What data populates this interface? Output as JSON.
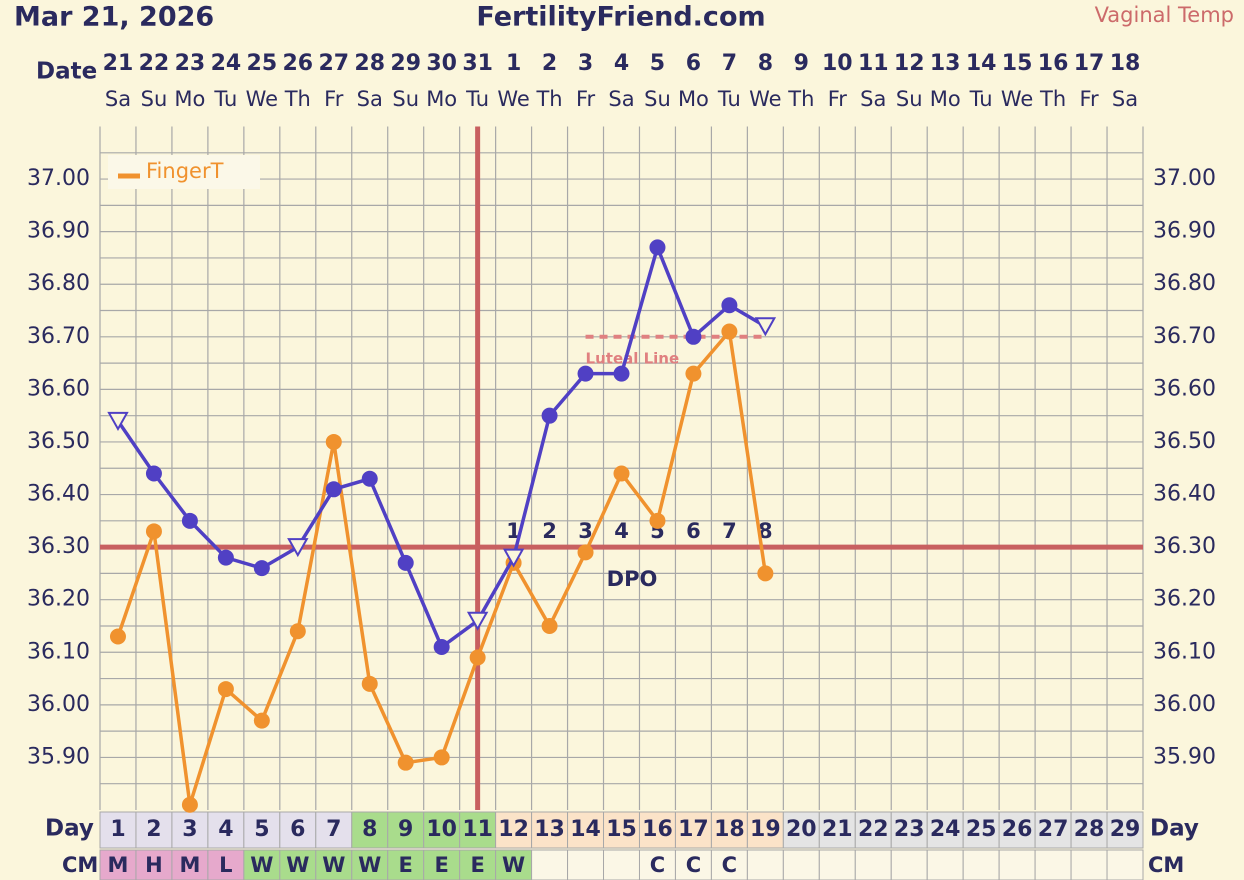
{
  "chart_data": {
    "type": "line",
    "date": "Mar 21, 2026",
    "title": "FertilityFriend.com",
    "date_label": "Date",
    "day_label": "Day",
    "cm_label": "CM",
    "categories": [
      1,
      2,
      3,
      4,
      5,
      6,
      7,
      8,
      9,
      10,
      11,
      12,
      13,
      14,
      15,
      16,
      17,
      18,
      19,
      20,
      21,
      22,
      23,
      24,
      25,
      26,
      27,
      28,
      29
    ],
    "dates": [
      21,
      22,
      23,
      24,
      25,
      26,
      27,
      28,
      29,
      30,
      31,
      1,
      2,
      3,
      4,
      5,
      6,
      7,
      8,
      9,
      10,
      11,
      12,
      13,
      14,
      15,
      16,
      17,
      18
    ],
    "weekdays": [
      "Sa",
      "Su",
      "Mo",
      "Tu",
      "We",
      "Th",
      "Fr",
      "Sa",
      "Su",
      "Mo",
      "Tu",
      "We",
      "Th",
      "Fr",
      "Sa",
      "Su",
      "Mo",
      "Tu",
      "We",
      "Th",
      "Fr",
      "Sa",
      "Su",
      "Mo",
      "Tu",
      "We",
      "Th",
      "Fr",
      "Sa"
    ],
    "cm": [
      "M",
      "H",
      "M",
      "L",
      "W",
      "W",
      "W",
      "W",
      "E",
      "E",
      "E",
      "W",
      null,
      null,
      null,
      "C",
      "C",
      "C",
      null,
      null,
      null,
      null,
      null,
      null,
      null,
      null,
      null,
      null,
      null
    ],
    "day_colors": [
      "#e4e0ec",
      "#e4e0ec",
      "#e4e0ec",
      "#e4e0ec",
      "#e4e0ec",
      "#e4e0ec",
      "#e4e0ec",
      "#a9dc8c",
      "#a9dc8c",
      "#a9dc8c",
      "#a9dc8c",
      "#fbe3c8",
      "#fbe3c8",
      "#fbe3c8",
      "#fbe3c8",
      "#fbe3c8",
      "#fbe3c8",
      "#fbe3c8",
      "#fbe3c8",
      "#e4e4e4",
      "#e4e4e4",
      "#e4e4e4",
      "#e4e4e4",
      "#e4e4e4",
      "#e4e4e4",
      "#e4e4e4",
      "#e4e4e4",
      "#e4e4e4",
      "#e4e4e4"
    ],
    "cm_colors": [
      "#e6a9cc",
      "#e6a9cc",
      "#e6a9cc",
      "#e6a9cc",
      "#a9dc8c",
      "#a9dc8c",
      "#a9dc8c",
      "#a9dc8c",
      "#a9dc8c",
      "#a9dc8c",
      "#a9dc8c",
      "#a9dc8c",
      "#fbf7e6",
      "#fbf7e6",
      "#fbf7e6",
      "#fbf7e6",
      "#fbf7e6",
      "#fbf7e6",
      "#fbf7e6",
      "#fbf7e6",
      "#fbf7e6",
      "#fbf7e6",
      "#fbf7e6",
      "#fbf7e6",
      "#fbf7e6",
      "#fbf7e6",
      "#fbf7e6",
      "#fbf7e6",
      "#fbf7e6"
    ],
    "series": [
      {
        "name": "Vaginal Temp",
        "color": "#5040c4",
        "label_color": "#cc6a6a",
        "values": [
          36.54,
          36.44,
          36.35,
          36.28,
          36.26,
          36.3,
          36.41,
          36.43,
          36.27,
          36.11,
          36.16,
          36.28,
          36.55,
          36.63,
          36.63,
          36.87,
          36.7,
          36.76,
          36.72,
          null,
          null,
          null,
          null,
          null,
          null,
          null,
          null,
          null,
          null
        ],
        "markers": [
          "triangle",
          "circle",
          "circle",
          "circle",
          "circle",
          "triangle",
          "circle",
          "circle",
          "circle",
          "circle",
          "triangle",
          "triangle",
          "circle",
          "circle",
          "circle",
          "circle",
          "circle",
          "circle",
          "triangle",
          null,
          null,
          null,
          null,
          null,
          null,
          null,
          null,
          null,
          null
        ]
      },
      {
        "name": "FingerT",
        "color": "#f0922e",
        "values": [
          36.13,
          36.33,
          35.81,
          36.03,
          35.97,
          36.14,
          36.5,
          36.04,
          35.89,
          35.9,
          36.09,
          36.27,
          36.15,
          36.29,
          36.44,
          36.35,
          36.63,
          36.71,
          36.25,
          null,
          null,
          null,
          null,
          null,
          null,
          null,
          null,
          null,
          null
        ],
        "markers": [
          "circle",
          "circle",
          "circle",
          "circle",
          "circle",
          "circle",
          "circle",
          "circle",
          "circle",
          "circle",
          "circle",
          "circle",
          "circle",
          "circle",
          "circle",
          "circle",
          "circle",
          "circle",
          "circle",
          null,
          null,
          null,
          null,
          null,
          null,
          null,
          null,
          null,
          null
        ]
      }
    ],
    "legend_series": 1,
    "ylim": [
      35.8,
      37.1
    ],
    "yticks": [
      {
        "value": 35.9,
        "label": "35.90"
      },
      {
        "value": 36.0,
        "label": "36.00"
      },
      {
        "value": 36.1,
        "label": "36.10"
      },
      {
        "value": 36.2,
        "label": "36.20"
      },
      {
        "value": 36.3,
        "label": "36.30"
      },
      {
        "value": 36.4,
        "label": "36.40"
      },
      {
        "value": 36.5,
        "label": "36.50"
      },
      {
        "value": 36.6,
        "label": "36.60"
      },
      {
        "value": 36.7,
        "label": "36.70"
      },
      {
        "value": 36.8,
        "label": "36.80"
      },
      {
        "value": 36.9,
        "label": "36.90"
      },
      {
        "value": 37.0,
        "label": "37.00"
      }
    ],
    "minor_yticks": [
      35.85,
      35.95,
      36.05,
      36.15,
      36.25,
      36.35,
      36.45,
      36.55,
      36.65,
      36.75,
      36.85,
      36.95,
      37.05
    ],
    "coverline": 36.3,
    "ovulation_day": 11,
    "line_color": "#c86060",
    "luteal": {
      "label": "Luteal Line",
      "value": 36.7,
      "from_day": 14,
      "to_day": 19
    },
    "dpo_label": "DPO",
    "dpo": [
      null,
      null,
      null,
      null,
      null,
      null,
      null,
      null,
      null,
      null,
      null,
      1,
      2,
      3,
      4,
      5,
      6,
      7,
      8,
      null,
      null,
      null,
      null,
      null,
      null,
      null,
      null,
      null,
      null
    ]
  }
}
